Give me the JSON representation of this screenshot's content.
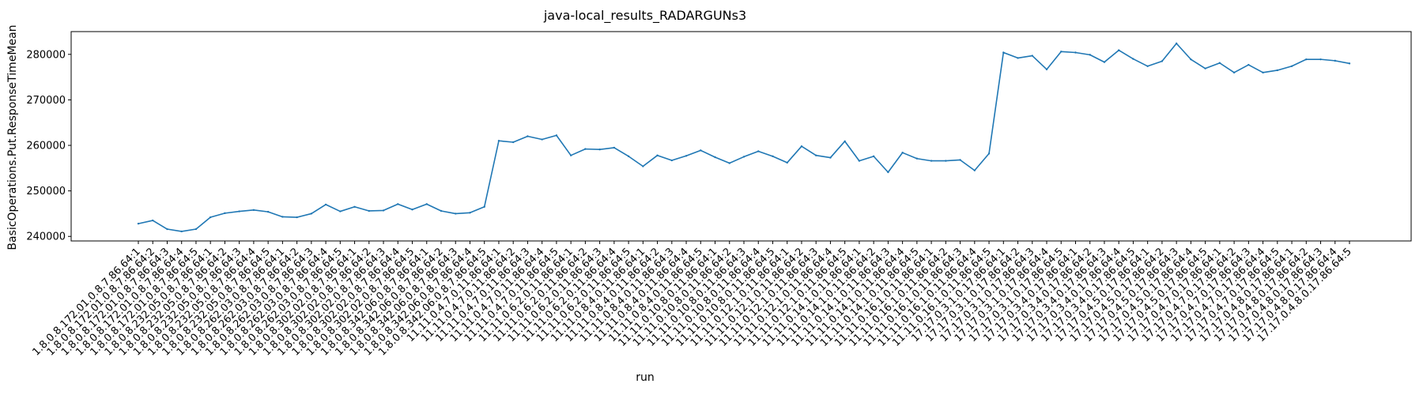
{
  "chart_data": {
    "type": "line",
    "title": "java-local_results_RADARGUNs3",
    "xlabel": "run",
    "ylabel": "BasicOperations.Put.ResponseTimeMean",
    "ylim": [
      239000,
      285000
    ],
    "yticks": [
      240000,
      250000,
      260000,
      270000,
      280000
    ],
    "grid": false,
    "series_color": "#1f77b4",
    "x": [
      "1.8.0.8.172.01.0.8.7.86.64:1",
      "1.8.0.8.172.01.0.8.7.86.64:2",
      "1.8.0.8.172.01.0.8.7.86.64:3",
      "1.8.0.8.172.01.0.8.7.86.64:4",
      "1.8.0.8.172.01.0.8.7.86.64:5",
      "1.8.0.8.232.05.0.8.7.86.64:1",
      "1.8.0.8.232.05.0.8.7.86.64:2",
      "1.8.0.8.232.05.0.8.7.86.64:3",
      "1.8.0.8.232.05.0.8.7.86.64:4",
      "1.8.0.8.232.05.0.8.7.86.64:5",
      "1.8.0.8.262.03.0.8.7.86.64:1",
      "1.8.0.8.262.03.0.8.7.86.64:2",
      "1.8.0.8.262.03.0.8.7.86.64:3",
      "1.8.0.8.262.03.0.8.7.86.64:4",
      "1.8.0.8.262.03.0.8.7.86.64:5",
      "1.8.0.8.302.02.0.8.7.86.64:1",
      "1.8.0.8.302.02.0.8.7.86.64:2",
      "1.8.0.8.302.02.0.8.7.86.64:3",
      "1.8.0.8.302.02.0.8.7.86.64:4",
      "1.8.0.8.302.02.0.8.7.86.64:5",
      "1.8.0.8.342.06.0.8.7.86.64:1",
      "1.8.0.8.342.06.0.8.7.86.64:2",
      "1.8.0.8.342.06.0.8.7.86.64:3",
      "1.8.0.8.342.06.0.8.7.86.64:4",
      "1.8.0.8.342.06.0.8.7.86.64:5",
      "11.11.0.4.7.0.11.86.64:1",
      "11.11.0.4.7.0.11.86.64:2",
      "11.11.0.4.7.0.11.86.64:3",
      "11.11.0.4.7.0.11.86.64:4",
      "11.11.0.4.7.0.11.86.64:5",
      "11.11.0.6.2.0.11.86.64:1",
      "11.11.0.6.2.0.11.86.64:2",
      "11.11.0.6.2.0.11.86.64:3",
      "11.11.0.6.2.0.11.86.64:4",
      "11.11.0.6.2.0.11.86.64:5",
      "11.11.0.8.4.0.11.86.64:1",
      "11.11.0.8.4.0.11.86.64:2",
      "11.11.0.8.4.0.11.86.64:3",
      "11.11.0.8.4.0.11.86.64:4",
      "11.11.0.8.4.0.11.86.64:5",
      "11.11.0.10.8.0.11.86.64:1",
      "11.11.0.10.8.0.11.86.64:2",
      "11.11.0.10.8.0.11.86.64:3",
      "11.11.0.10.8.0.11.86.64:4",
      "11.11.0.10.8.0.11.86.64:5",
      "11.11.0.12.1.0.11.86.64:1",
      "11.11.0.12.1.0.11.86.64:2",
      "11.11.0.12.1.0.11.86.64:3",
      "11.11.0.12.1.0.11.86.64:4",
      "11.11.0.12.1.0.11.86.64:5",
      "11.11.0.14.1.0.11.86.64:1",
      "11.11.0.14.1.0.11.86.64:2",
      "11.11.0.14.1.0.11.86.64:3",
      "11.11.0.14.1.0.11.86.64:4",
      "11.11.0.14.1.0.11.86.64:5",
      "11.11.0.16.1.0.11.86.64:1",
      "11.11.0.16.1.0.11.86.64:2",
      "11.11.0.16.1.0.11.86.64:3",
      "11.11.0.16.1.0.11.86.64:4",
      "11.11.0.16.1.0.11.86.64:5",
      "17.17.0.3.1.0.17.86.64:1",
      "17.17.0.3.1.0.17.86.64:2",
      "17.17.0.3.1.0.17.86.64:3",
      "17.17.0.3.1.0.17.86.64:4",
      "17.17.0.3.1.0.17.86.64:5",
      "17.17.0.3.4.0.17.86.64:1",
      "17.17.0.3.4.0.17.86.64:2",
      "17.17.0.3.4.0.17.86.64:3",
      "17.17.0.3.4.0.17.86.64:4",
      "17.17.0.3.4.0.17.86.64:5",
      "17.17.0.4.5.0.17.86.64:1",
      "17.17.0.4.5.0.17.86.64:2",
      "17.17.0.4.5.0.17.86.64:3",
      "17.17.0.4.5.0.17.86.64:4",
      "17.17.0.4.5.0.17.86.64:5",
      "17.17.0.4.7.0.17.86.64:1",
      "17.17.0.4.7.0.17.86.64:2",
      "17.17.0.4.7.0.17.86.64:3",
      "17.17.0.4.7.0.17.86.64:4",
      "17.17.0.4.7.0.17.86.64:5",
      "17.17.0.4.8.0.17.86.64:1",
      "17.17.0.4.8.0.17.86.64:2",
      "17.17.0.4.8.0.17.86.64:3",
      "17.17.0.4.8.0.17.86.64:4",
      "17.17.0.4.8.0.17.86.64:5"
    ],
    "y": [
      242800,
      243500,
      241600,
      241100,
      241600,
      244200,
      245100,
      245500,
      245800,
      245400,
      244300,
      244200,
      245000,
      247000,
      245500,
      246500,
      245600,
      245700,
      247100,
      245900,
      247100,
      245600,
      245000,
      245200,
      246500,
      261000,
      260700,
      262000,
      261300,
      262200,
      257800,
      259200,
      259100,
      259500,
      257600,
      255400,
      257800,
      256700,
      257700,
      258900,
      257400,
      256100,
      257500,
      258700,
      257600,
      256200,
      259800,
      257800,
      257300,
      260900,
      256600,
      257600,
      254100,
      258400,
      257100,
      256600,
      256600,
      256800,
      254500,
      258200,
      280400,
      279200,
      279700,
      276700,
      280600,
      280400,
      279900,
      278300,
      280900,
      279000,
      277400,
      278500,
      282400,
      278900,
      276900,
      278100,
      276000,
      277700,
      276000,
      276500,
      277400,
      278900,
      278900,
      278600,
      278000
    ]
  }
}
